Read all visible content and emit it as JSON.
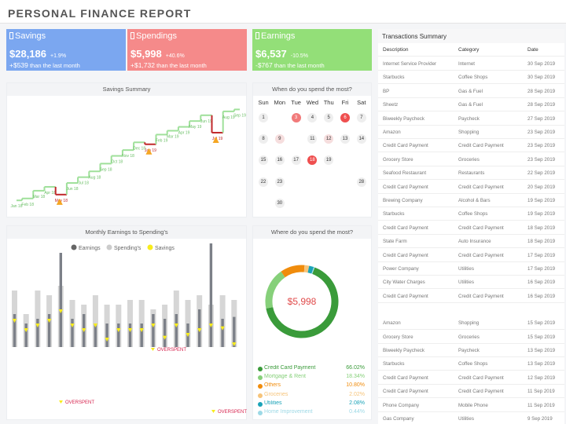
{
  "header": {
    "title": "PERSONAL FINANCE  REPORT"
  },
  "kpis": {
    "savings": {
      "label": "Savings",
      "value": "$28,186",
      "pct": "+1.9%",
      "delta": "+$539",
      "delta_text": "than the last month",
      "color": "#7ba7f0"
    },
    "spendings": {
      "label": "Spendings",
      "value": "$5,998",
      "pct": "+40.6%",
      "delta": "+$1,732",
      "delta_text": "than the last month",
      "color": "#f58a8a"
    },
    "earnings": {
      "label": "Earnings",
      "value": "$6,537",
      "pct": "-10.5%",
      "delta": "-$767",
      "delta_text": "than the last month",
      "color": "#93df78"
    }
  },
  "savings_summary": {
    "title": "Savings Summary",
    "labels": [
      "Jan 18",
      "Feb 18",
      "Mar 18",
      "Apr 18",
      "May 18",
      "Jun 18",
      "Jul 18",
      "Aug 18",
      "Sep 18",
      "Oct 18",
      "Nov 18",
      "Dec 18",
      "Jan 19",
      "Feb 19",
      "Mar 19",
      "Apr 19",
      "May 19",
      "Jun 19",
      "Jul 19",
      "Aug 19",
      "Sep 19"
    ],
    "values": [
      3,
      3.5,
      5.5,
      6.5,
      4.5,
      7.5,
      9,
      10.5,
      12.5,
      14.5,
      16,
      18,
      17.5,
      20,
      21,
      22,
      23.5,
      25,
      20.5,
      26,
      26.5
    ],
    "warnings": [
      "May 18",
      "Jan 19",
      "Jul 19"
    ]
  },
  "calendar": {
    "title": "When do you spend the most?",
    "weekdays": [
      "Sun",
      "Mon",
      "Tue",
      "Wed",
      "Thu",
      "Fri",
      "Sat"
    ],
    "days": [
      {
        "d": "1",
        "c": "#eee"
      },
      {
        "d": "",
        "c": ""
      },
      {
        "d": "3",
        "c": "#f17a7a"
      },
      {
        "d": "4",
        "c": "#eee"
      },
      {
        "d": "5",
        "c": "#eee"
      },
      {
        "d": "6",
        "c": "#ef4f4f"
      },
      {
        "d": "7",
        "c": "#eee"
      },
      {
        "d": "8",
        "c": "#eee"
      },
      {
        "d": "9",
        "c": "#f6dede"
      },
      {
        "d": "",
        "c": ""
      },
      {
        "d": "11",
        "c": "#eee"
      },
      {
        "d": "12",
        "c": "#f6dede"
      },
      {
        "d": "13",
        "c": "#eee"
      },
      {
        "d": "14",
        "c": "#eee"
      },
      {
        "d": "15",
        "c": "#eee"
      },
      {
        "d": "16",
        "c": "#eee"
      },
      {
        "d": "17",
        "c": "#eee"
      },
      {
        "d": "18",
        "c": "#ef4f4f"
      },
      {
        "d": "19",
        "c": "#eee"
      },
      {
        "d": "",
        "c": ""
      },
      {
        "d": "",
        "c": ""
      },
      {
        "d": "22",
        "c": "#eee"
      },
      {
        "d": "23",
        "c": "#eee"
      },
      {
        "d": "",
        "c": ""
      },
      {
        "d": "",
        "c": ""
      },
      {
        "d": "",
        "c": ""
      },
      {
        "d": "",
        "c": ""
      },
      {
        "d": "28",
        "c": "#eee"
      },
      {
        "d": "",
        "c": ""
      },
      {
        "d": "30",
        "c": "#eee"
      },
      {
        "d": "",
        "c": ""
      },
      {
        "d": "",
        "c": ""
      },
      {
        "d": "",
        "c": ""
      },
      {
        "d": "",
        "c": ""
      },
      {
        "d": "",
        "c": ""
      }
    ]
  },
  "monthly": {
    "title": "Monthly Earnings to Spending's",
    "legend": [
      "Earnings",
      "Spending's",
      "Savings"
    ],
    "earnings": [
      3.5,
      2.5,
      3,
      3.5,
      10,
      3,
      3.5,
      2.5,
      2.5,
      2.5,
      2.5,
      2.5,
      3.5,
      3,
      3.5,
      2.5,
      4,
      11,
      3,
      3.2
    ],
    "spendings": [
      6,
      3.5,
      6,
      5.5,
      6.5,
      5,
      4.5,
      5.5,
      4.5,
      4.5,
      5,
      5,
      4,
      4.5,
      6,
      5,
      5.5,
      4.5,
      5.5,
      5
    ],
    "savings": [
      3,
      2,
      2.5,
      3,
      4,
      2.5,
      2,
      2.5,
      1,
      2,
      2,
      2,
      2.5,
      1.2,
      2.5,
      1.5,
      2,
      2.5,
      2.2,
      0.5
    ],
    "overspent_label": "OVERSPENT"
  },
  "where": {
    "title": "Where do you spend the most?",
    "total": "$5,998",
    "categories": [
      {
        "name": "Credit Card Payment",
        "pct": "66.02%",
        "value": 66.02,
        "color": "#3a9b3a"
      },
      {
        "name": "Mortgage & Rent",
        "pct": "18.34%",
        "value": 18.34,
        "color": "#86d07a"
      },
      {
        "name": "Others",
        "pct": "10.80%",
        "value": 10.8,
        "color": "#f08c0c"
      },
      {
        "name": "Groceries",
        "pct": "2.02%",
        "value": 2.02,
        "color": "#f6c47a"
      },
      {
        "name": "Utilities",
        "pct": "2.08%",
        "value": 2.08,
        "color": "#1aa3b8"
      },
      {
        "name": "Home Improvement",
        "pct": "0.44%",
        "value": 0.44,
        "color": "#9dd9e6"
      }
    ]
  },
  "transactions": {
    "title": "Transactions Summary",
    "columns": [
      "Description",
      "Category",
      "Date"
    ],
    "rows": [
      [
        "Internet Service Provider",
        "Internet",
        "30 Sep 2019"
      ],
      [
        "Starbucks",
        "Coffee Shops",
        "30 Sep 2019"
      ],
      [
        "BP",
        "Gas & Fuel",
        "28 Sep 2019"
      ],
      [
        "Sheetz",
        "Gas & Fuel",
        "28 Sep 2019"
      ],
      [
        "Biweekly Paycheck",
        "Paycheck",
        "27 Sep 2019"
      ],
      [
        "Amazon",
        "Shopping",
        "23 Sep 2019"
      ],
      [
        "Credit Card Payment",
        "Credit Card Payment",
        "23 Sep 2019"
      ],
      [
        "Grocery Store",
        "Groceries",
        "23 Sep 2019"
      ],
      [
        "Seafood Restaurant",
        "Restaurants",
        "22 Sep 2019"
      ],
      [
        "Credit Card Payment",
        "Credit Card Payment",
        "20 Sep 2019"
      ],
      [
        "Brewing Company",
        "Alcohol & Bars",
        "19 Sep 2019"
      ],
      [
        "Starbucks",
        "Coffee Shops",
        "19 Sep 2019"
      ],
      [
        "Credit Card Payment",
        "Credit Card Payment",
        "18 Sep 2019"
      ],
      [
        "State Farm",
        "Auto Insurance",
        "18 Sep 2019"
      ],
      [
        "Credit Card Payment",
        "Credit Card Payment",
        "17 Sep 2019"
      ],
      [
        "Power Company",
        "Utilities",
        "17 Sep 2019"
      ],
      [
        "City Water Charges",
        "Utilities",
        "16 Sep 2019"
      ],
      [
        "Credit Card Payment",
        "Credit Card Payment",
        "16 Sep 2019"
      ],
      [
        "",
        "",
        ""
      ],
      [
        "Amazon",
        "Shopping",
        "15 Sep 2019"
      ],
      [
        "Grocery Store",
        "Groceries",
        "15 Sep 2019"
      ],
      [
        "Biweekly Paycheck",
        "Paycheck",
        "13 Sep 2019"
      ],
      [
        "Starbucks",
        "Coffee Shops",
        "13 Sep 2019"
      ],
      [
        "Credit Card Payment",
        "Credit Card Payment",
        "12 Sep 2019"
      ],
      [
        "Credit Card Payment",
        "Credit Card Payment",
        "11 Sep 2019"
      ],
      [
        "Phone Company",
        "Mobile Phone",
        "11 Sep 2019"
      ],
      [
        "Gas Company",
        "Utilities",
        "9 Sep 2019"
      ]
    ]
  }
}
